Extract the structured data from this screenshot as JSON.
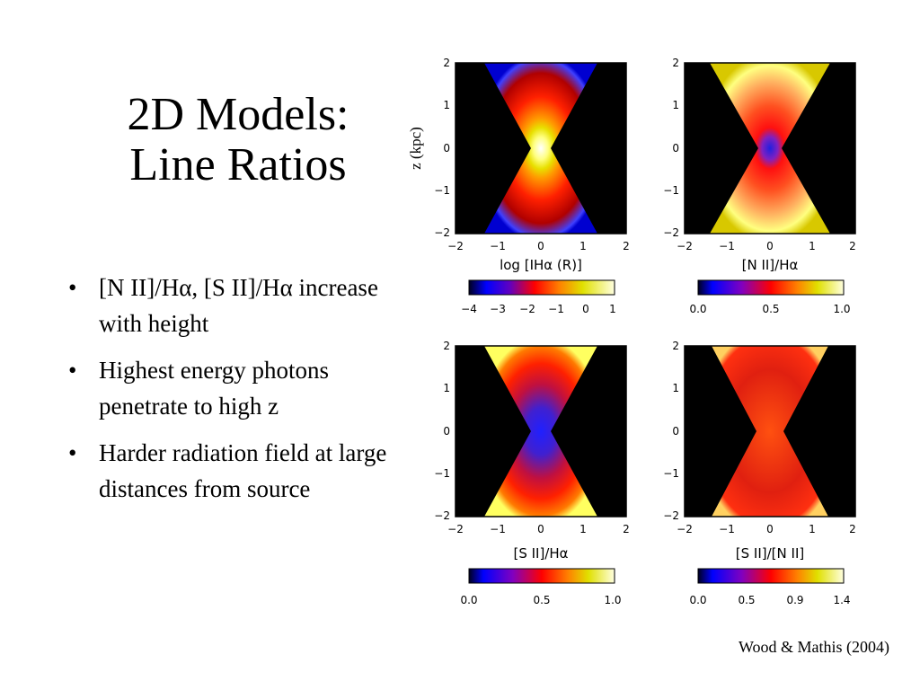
{
  "slide": {
    "title_line1": "2D Models:",
    "title_line2": "Line Ratios",
    "bullets": [
      "[N II]/Hα, [S II]/Hα increase with height",
      "Highest energy photons penetrate to high z",
      "Harder radiation field at large distances from source"
    ],
    "credit": "Wood & Mathis (2004)"
  },
  "figure": {
    "ylabel": "z (kpc)",
    "panels": [
      {
        "xlabel": "log [IHα (R)]",
        "x_ticks": [
          "−2",
          "−1",
          "0",
          "1",
          "2"
        ],
        "y_ticks": [
          "2",
          "1",
          "0",
          "−1",
          "−2"
        ],
        "colorbar_ticks": [
          "−4",
          "−3",
          "−2",
          "−1",
          "0",
          "1"
        ]
      },
      {
        "xlabel": "[N II]/Hα",
        "x_ticks": [
          "−2",
          "−1",
          "0",
          "1",
          "2"
        ],
        "y_ticks": [
          "2",
          "1",
          "0",
          "−1",
          "−2"
        ],
        "colorbar_ticks": [
          "0.0",
          "0.5",
          "1.0"
        ]
      },
      {
        "xlabel": "[S II]/Hα",
        "x_ticks": [
          "−2",
          "−1",
          "0",
          "1",
          "2"
        ],
        "y_ticks": [
          "2",
          "1",
          "0",
          "−1",
          "−2"
        ],
        "colorbar_ticks": [
          "0.0",
          "0.5",
          "1.0"
        ]
      },
      {
        "xlabel": "[S II]/[N II]",
        "x_ticks": [
          "−2",
          "−1",
          "0",
          "1",
          "2"
        ],
        "y_ticks": [
          "2",
          "1",
          "0",
          "−1",
          "−2"
        ],
        "colorbar_ticks": [
          "0.0",
          "0.5",
          "0.9",
          "1.4"
        ]
      }
    ],
    "colors": {
      "background": "#000000",
      "map_low": "#0000ff",
      "map_mid": "#ff0000",
      "map_high": "#ffffff"
    }
  }
}
